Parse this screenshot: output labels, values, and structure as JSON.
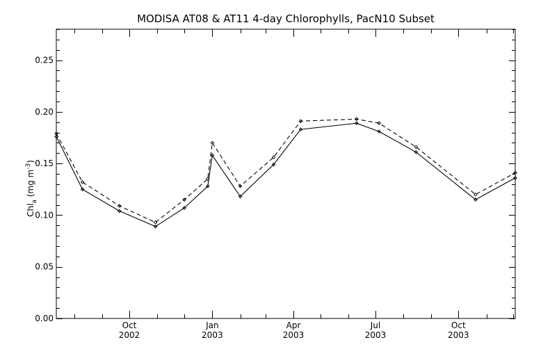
{
  "chart_data": {
    "type": "line",
    "title": "MODISA AT08 & AT11 4-day Chlorophylls, PacN10 Subset",
    "ylabel": {
      "prefix": "Chl",
      "subscript": "a",
      "units_open": " (mg m",
      "superscript": "-3",
      "units_close": ")"
    },
    "xlabel": "",
    "ylim": [
      0.0,
      0.28
    ],
    "xlim": [
      "2002-07-12",
      "2003-12-03"
    ],
    "y_ticks": [
      "0.00",
      "0.05",
      "0.10",
      "0.15",
      "0.20",
      "0.25"
    ],
    "y_tick_values": [
      0.0,
      0.05,
      0.1,
      0.15,
      0.2,
      0.25
    ],
    "x_ticks": [
      {
        "date": "2002-10-01",
        "month": "Oct",
        "year": "2002"
      },
      {
        "date": "2003-01-01",
        "month": "Jan",
        "year": "2003"
      },
      {
        "date": "2003-04-01",
        "month": "Apr",
        "year": "2003"
      },
      {
        "date": "2003-07-01",
        "month": "Jul",
        "year": "2003"
      },
      {
        "date": "2003-10-01",
        "month": "Oct",
        "year": "2003"
      }
    ],
    "grid": false,
    "series": [
      {
        "style": "solid",
        "x": [
          "2002-07-12",
          "2002-08-10",
          "2002-09-20",
          "2002-10-30",
          "2002-12-01",
          "2002-12-27",
          "2003-01-01",
          "2003-02-01",
          "2003-03-10",
          "2003-04-09",
          "2003-06-10",
          "2003-07-05",
          "2003-08-15",
          "2003-10-20",
          "2003-12-03"
        ],
        "values": [
          0.176,
          0.125,
          0.104,
          0.089,
          0.107,
          0.128,
          0.158,
          0.118,
          0.149,
          0.183,
          0.189,
          0.181,
          0.161,
          0.115,
          0.136
        ]
      },
      {
        "style": "dashed",
        "x": [
          "2002-07-12",
          "2002-08-10",
          "2002-09-20",
          "2002-10-30",
          "2002-12-01",
          "2002-12-27",
          "2003-01-01",
          "2003-02-01",
          "2003-03-10",
          "2003-04-09",
          "2003-06-10",
          "2003-07-05",
          "2003-08-15",
          "2003-10-20",
          "2003-12-03"
        ],
        "values": [
          0.179,
          0.132,
          0.109,
          0.093,
          0.115,
          0.135,
          0.17,
          0.128,
          0.156,
          0.191,
          0.193,
          0.189,
          0.166,
          0.12,
          0.141
        ]
      }
    ]
  }
}
